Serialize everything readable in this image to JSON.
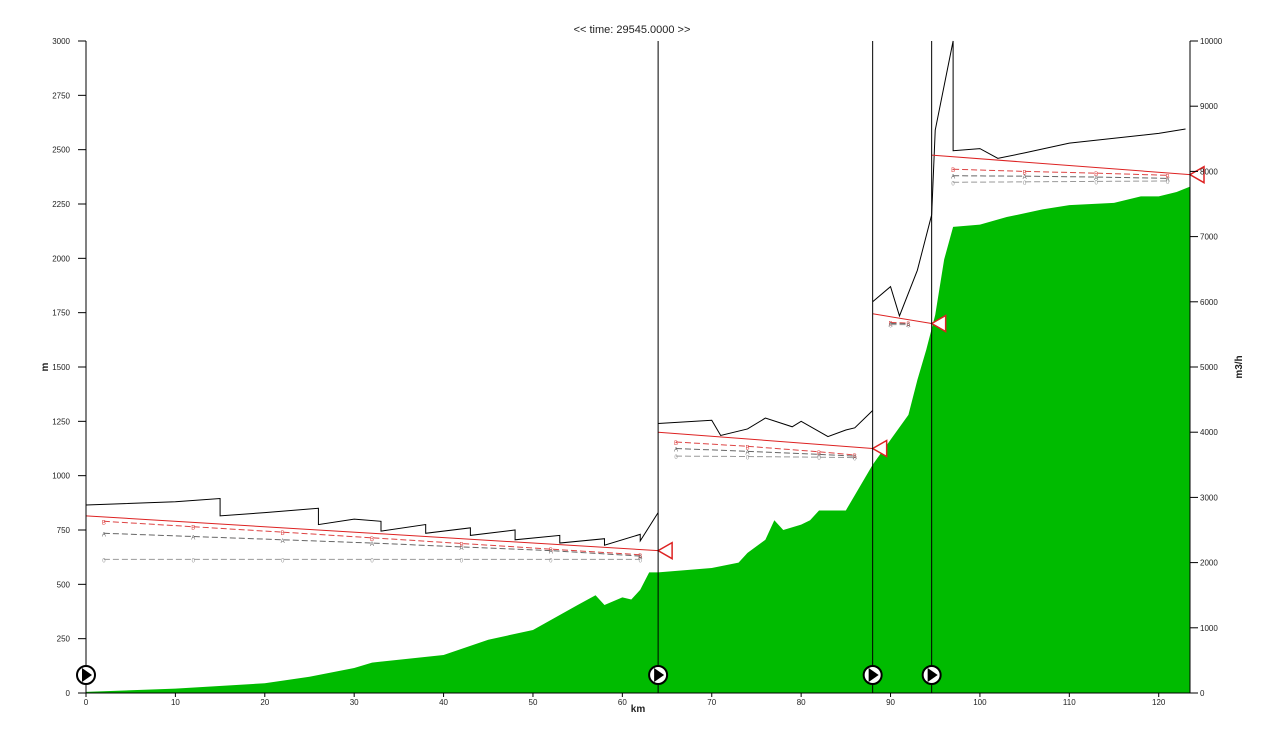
{
  "chart_data": {
    "type": "line",
    "title": "<< time: 29545.0000 >>",
    "x_label": "km",
    "y_label": "m",
    "y2_label": "m3/h",
    "xlim": [
      0,
      123.5
    ],
    "ylim": [
      0,
      3000
    ],
    "y2lim": [
      0,
      10000
    ],
    "xticks": [
      0,
      10,
      20,
      30,
      40,
      50,
      60,
      70,
      80,
      90,
      100,
      110,
      120
    ],
    "yticks": [
      0,
      250,
      500,
      750,
      1000,
      1250,
      1500,
      1750,
      2000,
      2250,
      2500,
      2750,
      3000
    ],
    "y2ticks": [
      0,
      1000,
      2000,
      3000,
      4000,
      5000,
      6000,
      7000,
      8000,
      9000,
      10000
    ],
    "stations": [
      0,
      64,
      88,
      94.6
    ],
    "series": [
      {
        "color": "#00bb00",
        "fill": true,
        "x": [
          0,
          10,
          20,
          25,
          30,
          32,
          40,
          45,
          50,
          55,
          57,
          58,
          60,
          61,
          62,
          63,
          64,
          70,
          73,
          74,
          76,
          77,
          78,
          80,
          81,
          82,
          85,
          86,
          88,
          90,
          92,
          93,
          94,
          95,
          96,
          97,
          100,
          103,
          107,
          110,
          115,
          118,
          120,
          122,
          123.5
        ],
        "values": [
          5,
          20,
          45,
          75,
          115,
          140,
          175,
          245,
          290,
          405,
          450,
          405,
          440,
          430,
          475,
          555,
          555,
          575,
          600,
          645,
          705,
          795,
          750,
          775,
          795,
          840,
          840,
          910,
          1050,
          1165,
          1280,
          1440,
          1580,
          1740,
          1995,
          2145,
          2155,
          2190,
          2225,
          2245,
          2255,
          2285,
          2285,
          2305,
          2330
        ]
      },
      {
        "color": "#000000",
        "x": [
          0,
          10,
          15,
          15,
          20,
          26,
          26,
          30,
          33,
          33,
          38,
          38,
          43,
          43,
          48,
          48,
          53,
          53,
          58,
          58,
          62,
          62,
          64,
          64,
          64,
          70,
          71,
          74,
          76,
          79,
          80,
          83,
          85,
          86,
          88,
          88,
          88,
          90,
          91,
          93,
          94.6,
          95,
          97,
          97,
          100,
          102,
          105,
          110,
          120,
          123
        ],
        "values": [
          865,
          880,
          895,
          815,
          830,
          850,
          775,
          800,
          790,
          745,
          775,
          735,
          760,
          725,
          750,
          705,
          725,
          690,
          710,
          680,
          730,
          700,
          830,
          null,
          1240,
          1255,
          1185,
          1215,
          1265,
          1225,
          1250,
          1180,
          1210,
          1220,
          1300,
          null,
          1800,
          1870,
          1735,
          1945,
          2200,
          2590,
          3000,
          2495,
          2505,
          2460,
          2485,
          2530,
          2575,
          2595
        ]
      },
      {
        "color": "#dd2222",
        "x": [
          0,
          64,
          64,
          64,
          88,
          88,
          88,
          94.6,
          94.6,
          94.6,
          123.5
        ],
        "values": [
          815,
          655,
          null,
          1200,
          1125,
          null,
          1745,
          1700,
          null,
          2475,
          2385
        ]
      },
      {
        "color": "#dd4444",
        "marker": "B",
        "x": [
          2,
          12,
          22,
          32,
          42,
          52,
          62,
          null,
          66,
          74,
          82,
          86,
          null,
          90,
          92,
          null,
          97,
          105,
          113,
          121
        ],
        "values": [
          790,
          765,
          740,
          714,
          688,
          662,
          636,
          null,
          1155,
          1135,
          1110,
          1095,
          null,
          1705,
          1702,
          null,
          2410,
          2400,
          2392,
          2382
        ]
      },
      {
        "color": "#666666",
        "marker": "A",
        "x": [
          2,
          12,
          22,
          32,
          42,
          52,
          62,
          null,
          66,
          74,
          82,
          86,
          null,
          90,
          92,
          null,
          97,
          105,
          113,
          121
        ],
        "values": [
          735,
          720,
          705,
          690,
          672,
          655,
          630,
          null,
          1125,
          1112,
          1098,
          1090,
          null,
          1700,
          1698,
          null,
          2380,
          2378,
          2374,
          2368
        ]
      },
      {
        "color": "#999999",
        "marker": "0",
        "x": [
          2,
          12,
          22,
          32,
          42,
          52,
          62,
          null,
          66,
          74,
          82,
          86,
          null,
          90,
          92,
          null,
          97,
          105,
          113,
          121
        ],
        "values": [
          615,
          615,
          615,
          615,
          615,
          615,
          615,
          null,
          1090,
          1088,
          1085,
          1083,
          null,
          1695,
          1695,
          null,
          2350,
          2352,
          2354,
          2356
        ]
      }
    ]
  }
}
